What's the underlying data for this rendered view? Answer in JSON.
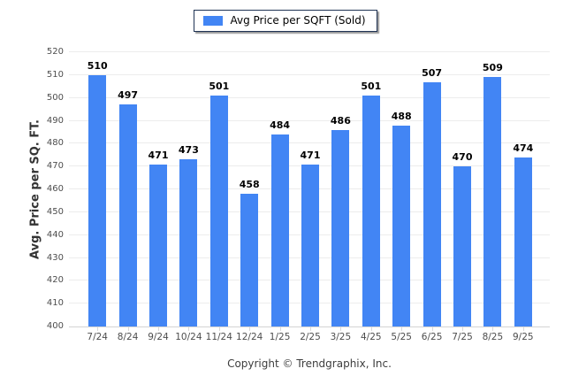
{
  "legend": {
    "label": "Avg Price per SQFT (Sold)"
  },
  "y_axis": {
    "title": "Avg. Price per SQ. FT."
  },
  "footer": {
    "text": "Copyright © Trendgraphix, Inc."
  },
  "colors": {
    "bar": "#4285f4",
    "legend_border": "#1f3354",
    "grid": "#ececec",
    "axis_line": "#d4d4d4",
    "tick_text": "#4d4d4d",
    "value_text": "#000000"
  },
  "chart_data": {
    "type": "bar",
    "title": "",
    "categories": [
      "7/24",
      "8/24",
      "9/24",
      "10/24",
      "11/24",
      "12/24",
      "1/25",
      "2/25",
      "3/25",
      "4/25",
      "5/25",
      "6/25",
      "7/25",
      "8/25",
      "9/25"
    ],
    "series": [
      {
        "name": "Avg Price per SQFT (Sold)",
        "values": [
          510,
          497,
          471,
          473,
          501,
          458,
          484,
          471,
          486,
          501,
          488,
          507,
          470,
          509,
          474
        ]
      }
    ],
    "xlabel": "",
    "ylabel": "Avg. Price per SQ. FT.",
    "ylim": [
      400,
      520
    ],
    "ytick_step": 10,
    "grid": true,
    "legend_position": "top",
    "bar_color": "#4285f4",
    "value_labels": true
  }
}
